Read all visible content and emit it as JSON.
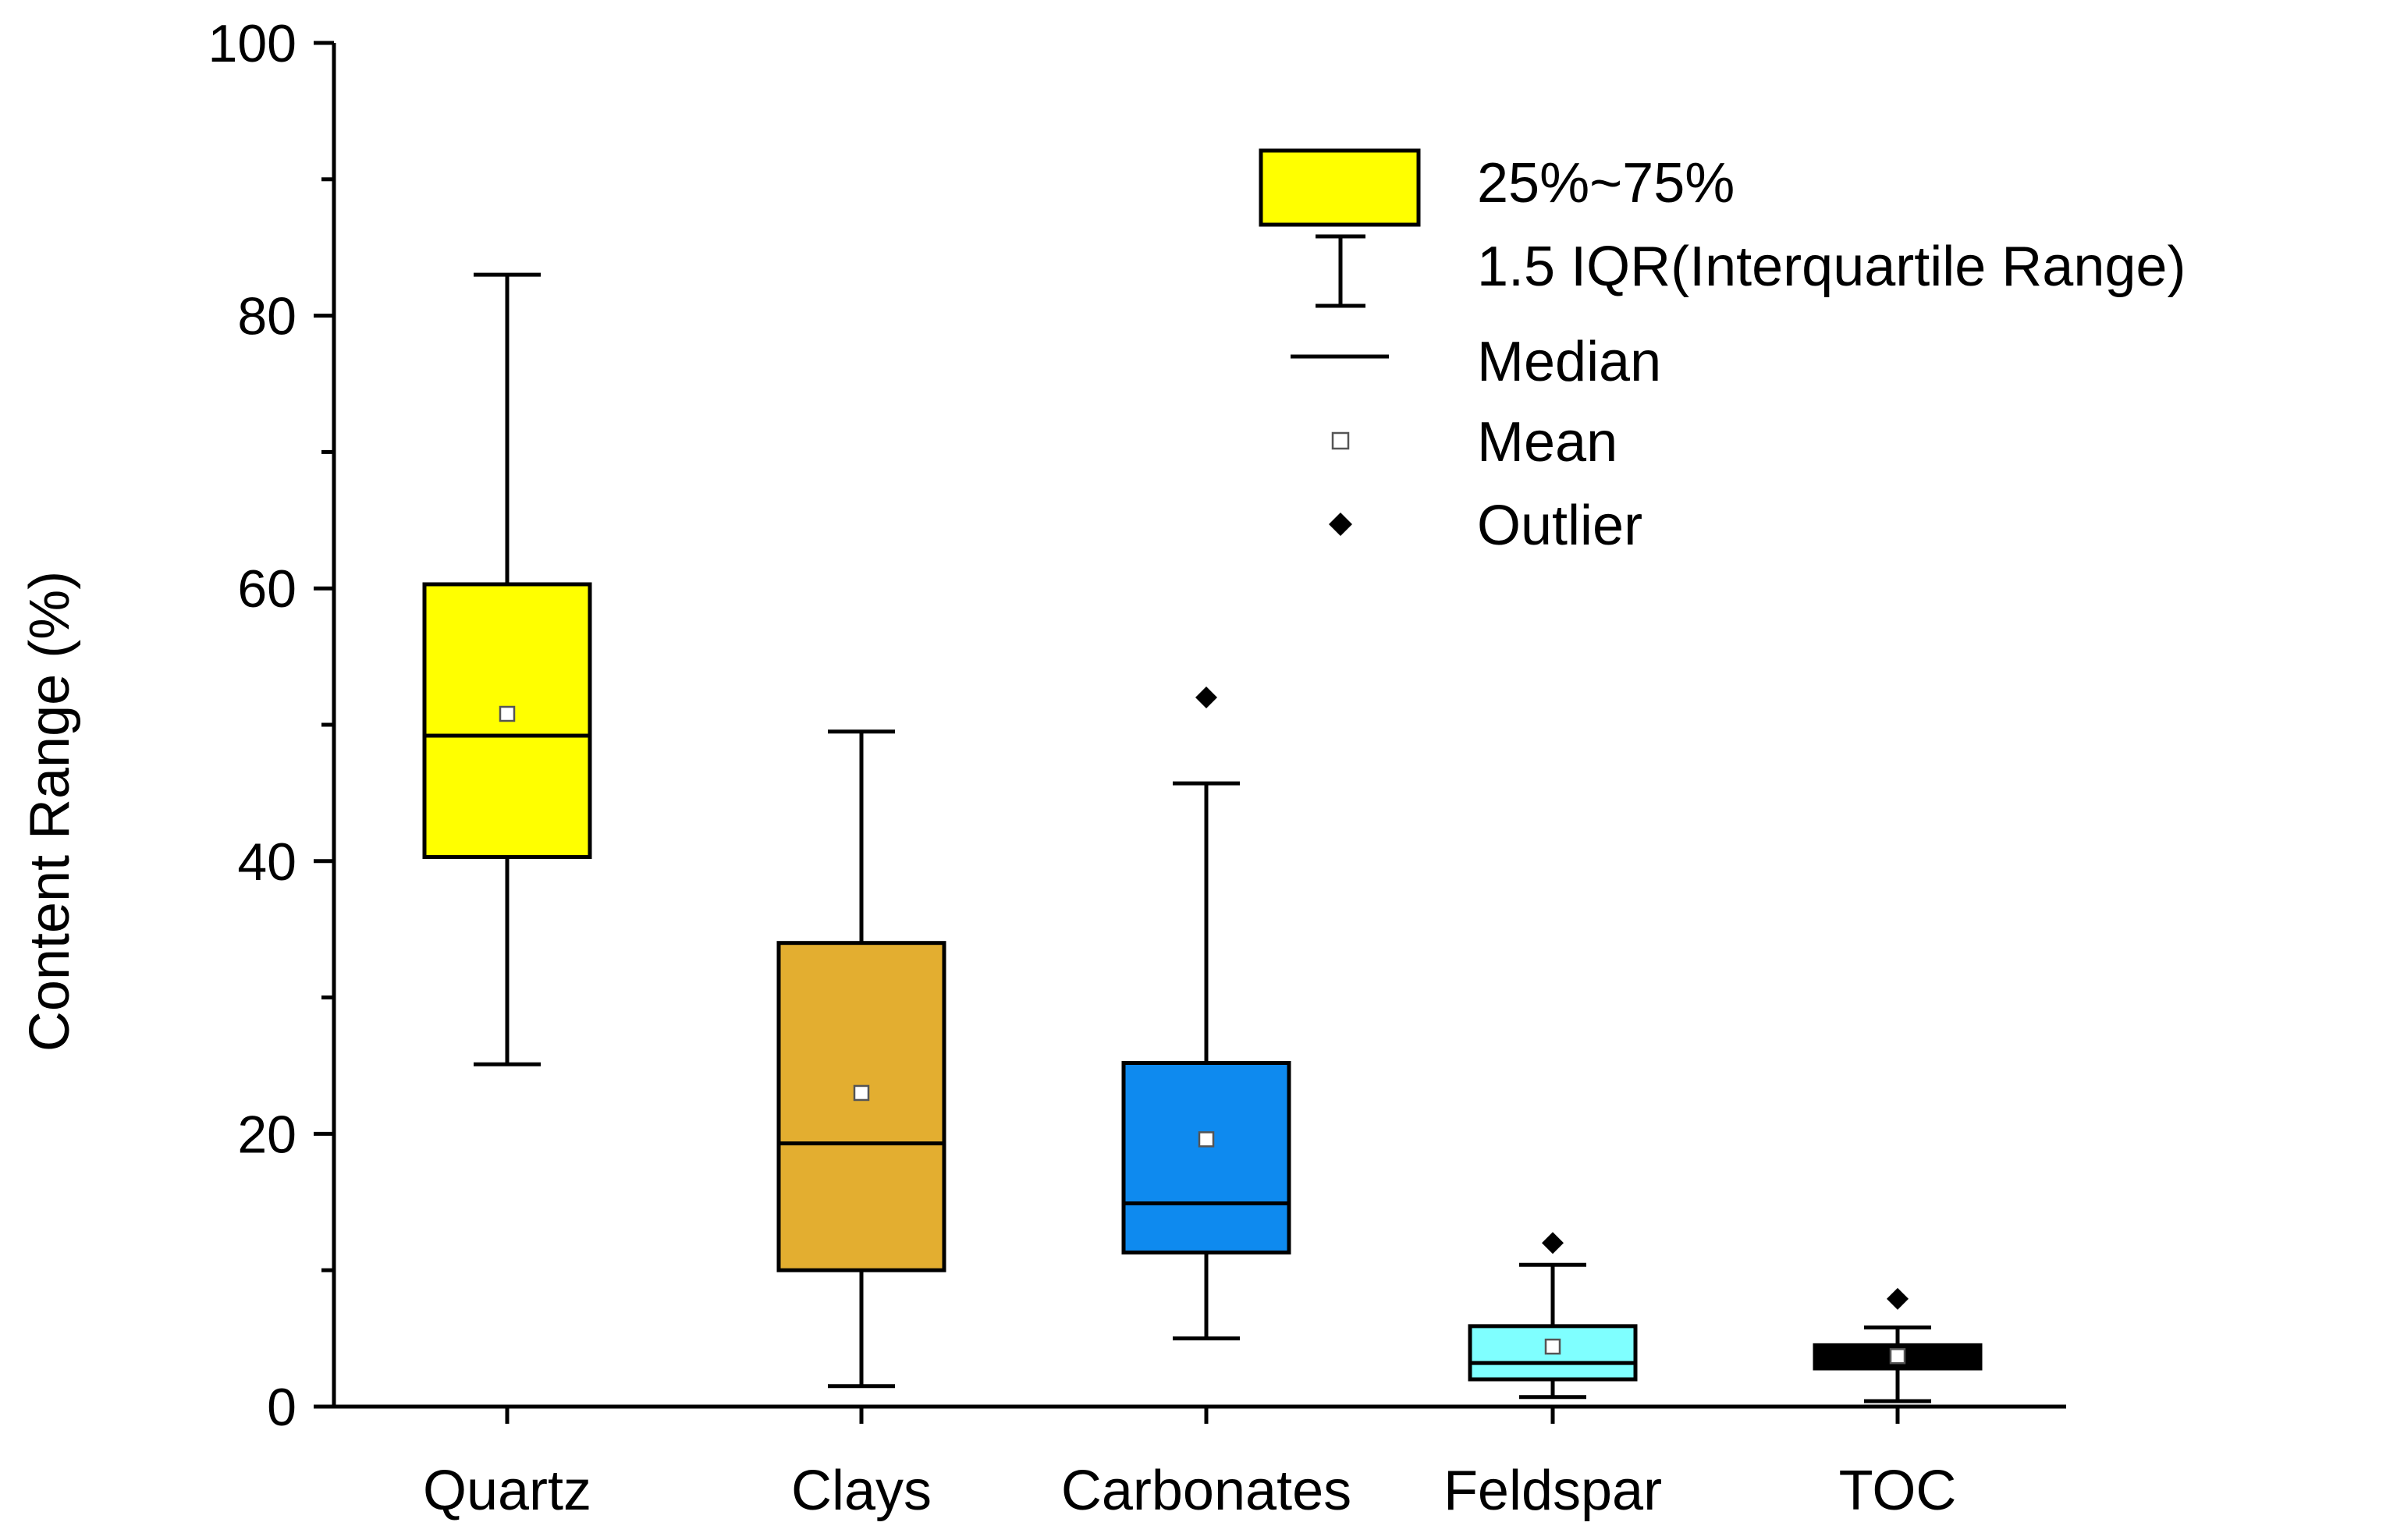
{
  "chart_data": {
    "type": "box",
    "title": "",
    "xlabel": "",
    "ylabel": "Content Range (%)",
    "ylim": [
      0,
      100
    ],
    "yticks": [
      0,
      20,
      40,
      60,
      80,
      100
    ],
    "yminor_step": 10,
    "categories": [
      "Quartz",
      "Clays",
      "Carbonates",
      "Feldspar",
      "TOC"
    ],
    "boxes": [
      {
        "name": "Quartz",
        "whisker_low": 25.1,
        "q1": 40.3,
        "median": 49.2,
        "q3": 60.3,
        "whisker_high": 83.0,
        "mean": 50.8,
        "outliers": [],
        "color": "#FFFF00"
      },
      {
        "name": "Clays",
        "whisker_low": 1.5,
        "q1": 10.0,
        "median": 19.3,
        "q3": 34.0,
        "whisker_high": 49.5,
        "mean": 23.0,
        "outliers": [],
        "color": "#E3AE30"
      },
      {
        "name": "Carbonates",
        "whisker_low": 5.0,
        "q1": 11.3,
        "median": 14.9,
        "q3": 25.2,
        "whisker_high": 45.7,
        "mean": 19.6,
        "outliers": [
          52.0
        ],
        "color": "#0E8AEF"
      },
      {
        "name": "Feldspar",
        "whisker_low": 0.7,
        "q1": 2.0,
        "median": 3.2,
        "q3": 5.9,
        "whisker_high": 10.4,
        "mean": 4.4,
        "outliers": [
          12.0
        ],
        "color": "#7FFFFF"
      },
      {
        "name": "TOC",
        "whisker_low": 0.4,
        "q1": 2.8,
        "median": 3.5,
        "q3": 4.5,
        "whisker_high": 5.8,
        "mean": 3.7,
        "outliers": [
          7.9
        ],
        "color": "#000000"
      }
    ],
    "legend": {
      "position": "top-right",
      "items": [
        {
          "symbol": "box",
          "label": "25%~75%",
          "color": "#FFFF00"
        },
        {
          "symbol": "whisker",
          "label": "1.5 IQR(Interquartile Range)"
        },
        {
          "symbol": "line",
          "label": "Median"
        },
        {
          "symbol": "square",
          "label": "Mean"
        },
        {
          "symbol": "diamond",
          "label": "Outlier"
        }
      ]
    }
  }
}
